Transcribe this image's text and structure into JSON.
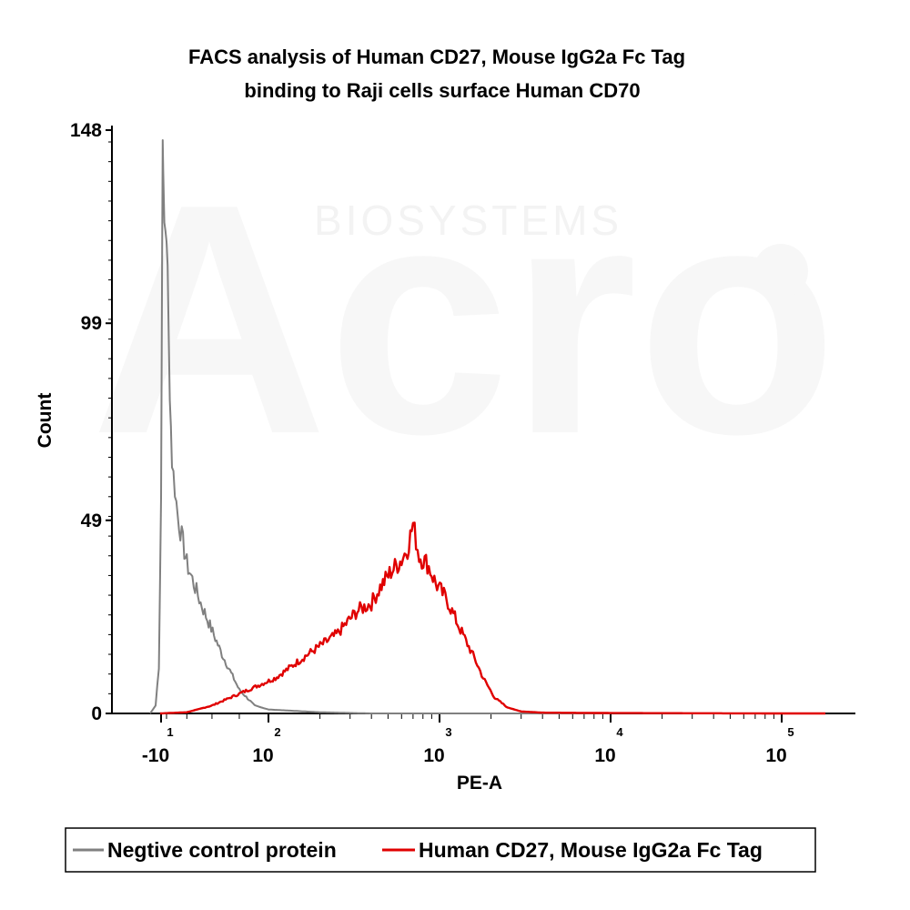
{
  "chart_data": {
    "type": "line",
    "title": [
      "FACS analysis of  Human CD27, Mouse IgG2a Fc Tag",
      "binding to Raji cells surface Human CD70"
    ],
    "xlabel": "PE-A",
    "ylabel": "Count",
    "x_scale": "biexponential",
    "x_ticks": [
      {
        "base": "-10",
        "exp": "1",
        "value": -10
      },
      {
        "base": "10",
        "exp": "2",
        "value": 100
      },
      {
        "base": "10",
        "exp": "3",
        "value": 1000
      },
      {
        "base": "10",
        "exp": "4",
        "value": 10000
      },
      {
        "base": "10",
        "exp": "5",
        "value": 100000
      }
    ],
    "y_ticks": [
      "0",
      "49",
      "99",
      "148"
    ],
    "ylim": [
      0,
      148
    ],
    "grid": false,
    "legend_position": "bottom",
    "series": [
      {
        "name": "Negtive control protein",
        "color": "#808080",
        "points": [
          [
            -20,
            0
          ],
          [
            -15,
            2
          ],
          [
            -12,
            12
          ],
          [
            -10,
            55
          ],
          [
            -9,
            118
          ],
          [
            -8.5,
            148
          ],
          [
            -8,
            135
          ],
          [
            -7,
            124
          ],
          [
            -6,
            123
          ],
          [
            -5,
            121
          ],
          [
            -4,
            112
          ],
          [
            -3,
            95
          ],
          [
            -2,
            82
          ],
          [
            0,
            64
          ],
          [
            5,
            50
          ],
          [
            10,
            38
          ],
          [
            20,
            28
          ],
          [
            40,
            15
          ],
          [
            60,
            6
          ],
          [
            80,
            2
          ],
          [
            100,
            1
          ],
          [
            200,
            0.3
          ],
          [
            400,
            0
          ],
          [
            10000,
            0
          ]
        ]
      },
      {
        "name": "Human CD27, Mouse IgG2a Fc Tag",
        "color": "#e00000",
        "points": [
          [
            -11,
            0
          ],
          [
            10,
            0.3
          ],
          [
            30,
            2
          ],
          [
            60,
            5
          ],
          [
            110,
            9
          ],
          [
            170,
            15
          ],
          [
            250,
            20
          ],
          [
            330,
            26
          ],
          [
            400,
            28
          ],
          [
            450,
            32
          ],
          [
            520,
            36
          ],
          [
            600,
            39
          ],
          [
            650,
            42
          ],
          [
            700,
            48
          ],
          [
            760,
            40
          ],
          [
            850,
            38
          ],
          [
            950,
            33
          ],
          [
            1100,
            29
          ],
          [
            1300,
            22
          ],
          [
            1600,
            14
          ],
          [
            1800,
            9
          ],
          [
            2100,
            4
          ],
          [
            2500,
            1.5
          ],
          [
            3000,
            0.5
          ],
          [
            4000,
            0.2
          ],
          [
            10000,
            0.1
          ],
          [
            100000,
            0
          ],
          [
            180000,
            0
          ]
        ]
      }
    ]
  },
  "watermark": {
    "text": "BIOSYSTEMS",
    "logo_letters": "Acro"
  }
}
